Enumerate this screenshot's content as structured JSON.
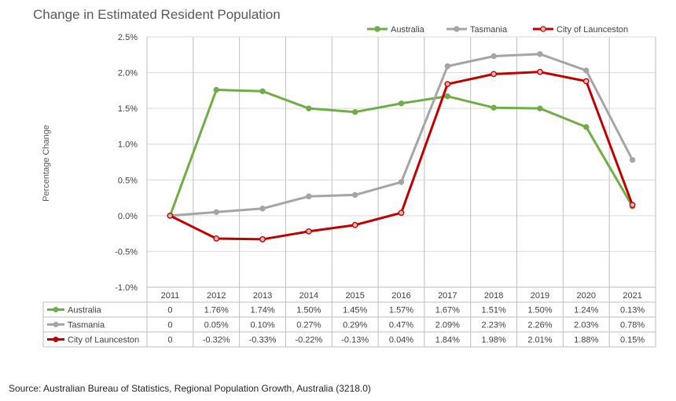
{
  "chart_data": {
    "type": "line",
    "title": "Change in Estimated Resident Population",
    "ylabel": "Percentage Change",
    "xlabel": "",
    "ylim": [
      -1.0,
      2.5
    ],
    "yticks": [
      -1.0,
      -0.5,
      0.0,
      0.5,
      1.0,
      1.5,
      2.0,
      2.5
    ],
    "ytick_labels": [
      "-1.0%",
      "-0.5%",
      "0.0%",
      "0.5%",
      "1.0%",
      "1.5%",
      "2.0%",
      "2.5%"
    ],
    "grid": true,
    "legend_position": "top-right",
    "categories": [
      "2011",
      "2012",
      "2013",
      "2014",
      "2015",
      "2016",
      "2017",
      "2018",
      "2019",
      "2020",
      "2021"
    ],
    "series": [
      {
        "name": "Australia",
        "color": "#70ad47",
        "values": [
          0,
          1.76,
          1.74,
          1.5,
          1.45,
          1.57,
          1.67,
          1.51,
          1.5,
          1.24,
          0.13
        ],
        "labels": [
          "0",
          "1.76%",
          "1.74%",
          "1.50%",
          "1.45%",
          "1.57%",
          "1.67%",
          "1.51%",
          "1.50%",
          "1.24%",
          "0.13%"
        ]
      },
      {
        "name": "Tasmania",
        "color": "#a5a5a5",
        "values": [
          0,
          0.05,
          0.1,
          0.27,
          0.29,
          0.47,
          2.09,
          2.23,
          2.26,
          2.03,
          0.78
        ],
        "labels": [
          "0",
          "0.05%",
          "0.10%",
          "0.27%",
          "0.29%",
          "0.47%",
          "2.09%",
          "2.23%",
          "2.26%",
          "2.03%",
          "0.78%"
        ]
      },
      {
        "name": "City of Launceston",
        "color": "#c00000",
        "values": [
          0,
          -0.32,
          -0.33,
          -0.22,
          -0.13,
          0.04,
          1.84,
          1.98,
          2.01,
          1.88,
          0.15
        ],
        "labels": [
          "0",
          "-0.32%",
          "-0.33%",
          "-0.22%",
          "-0.13%",
          "0.04%",
          "1.84%",
          "1.98%",
          "2.01%",
          "1.88%",
          "0.15%"
        ]
      }
    ]
  },
  "source": "Source: Australian Bureau of Statistics, Regional Population Growth, Australia (3218.0)"
}
